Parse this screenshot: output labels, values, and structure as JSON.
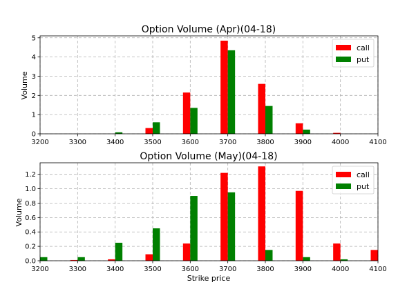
{
  "chart_data": [
    {
      "type": "bar",
      "title": "Option Volume (Apr)(04-18)",
      "xlabel": "",
      "ylabel": "Volume",
      "xlim": [
        3200,
        4100
      ],
      "ylim": [
        0,
        5.1
      ],
      "xticks": [
        3200,
        3300,
        3400,
        3500,
        3600,
        3700,
        3800,
        3900,
        4000,
        4100
      ],
      "yticks": [
        0,
        1,
        2,
        3,
        4,
        5
      ],
      "ytick_labels": [
        "0",
        "1",
        "2",
        "3",
        "4",
        "5"
      ],
      "grid": true,
      "legend_position": "top-right",
      "x": [
        3200,
        3300,
        3400,
        3500,
        3600,
        3700,
        3800,
        3900,
        4000
      ],
      "series": [
        {
          "name": "call",
          "color": "#ff0000",
          "values": [
            0,
            0,
            0,
            0.3,
            2.15,
            4.85,
            2.6,
            0.55,
            0.05
          ]
        },
        {
          "name": "put",
          "color": "#008000",
          "values": [
            0,
            0,
            0.08,
            0.6,
            1.35,
            4.35,
            1.45,
            0.22,
            0
          ]
        }
      ]
    },
    {
      "type": "bar",
      "title": "Option Volume (May)(04-18)",
      "xlabel": "Strike price",
      "ylabel": "Volume",
      "xlim": [
        3200,
        4100
      ],
      "ylim": [
        0,
        1.36
      ],
      "xticks": [
        3200,
        3300,
        3400,
        3500,
        3600,
        3700,
        3800,
        3900,
        4000,
        4100
      ],
      "yticks": [
        0,
        0.2,
        0.4,
        0.6,
        0.8,
        1.0,
        1.2
      ],
      "ytick_labels": [
        "0.0",
        "0.2",
        "0.4",
        "0.6",
        "0.8",
        "1.0",
        "1.2"
      ],
      "grid": true,
      "legend_position": "top-right",
      "x": [
        3200,
        3300,
        3400,
        3500,
        3600,
        3700,
        3800,
        3900,
        4000,
        4100
      ],
      "series": [
        {
          "name": "call",
          "color": "#ff0000",
          "values": [
            0,
            0.01,
            0.02,
            0.09,
            0.24,
            1.22,
            1.31,
            0.97,
            0.24,
            0.15
          ]
        },
        {
          "name": "put",
          "color": "#008000",
          "values": [
            0.05,
            0.05,
            0.25,
            0.45,
            0.9,
            0.95,
            0.15,
            0.05,
            0.02,
            0
          ]
        }
      ]
    }
  ]
}
